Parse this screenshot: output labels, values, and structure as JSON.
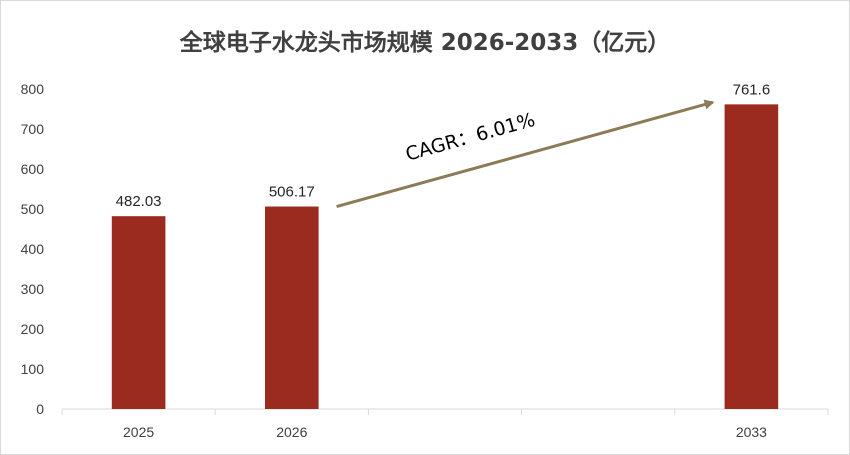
{
  "chart_data": {
    "type": "bar",
    "title": "全球电子水龙头市场规模 2026-2033（亿元）",
    "categories": [
      "2025",
      "2026",
      "",
      "",
      "2033"
    ],
    "values": [
      482.03,
      506.17,
      null,
      null,
      761.6
    ],
    "data_labels": [
      "482.03",
      "506.17",
      "",
      "",
      "761.6"
    ],
    "ylim": [
      0,
      800
    ],
    "yticks": [
      0,
      100,
      200,
      300,
      400,
      500,
      600,
      700,
      800
    ],
    "grid": false,
    "legend": "none",
    "bar_color": "#9B2B1F",
    "annotation": {
      "text": "CAGR：6.01%",
      "from_category": "2026",
      "to_category": "2033",
      "arrow_color": "#8C7B56"
    }
  }
}
